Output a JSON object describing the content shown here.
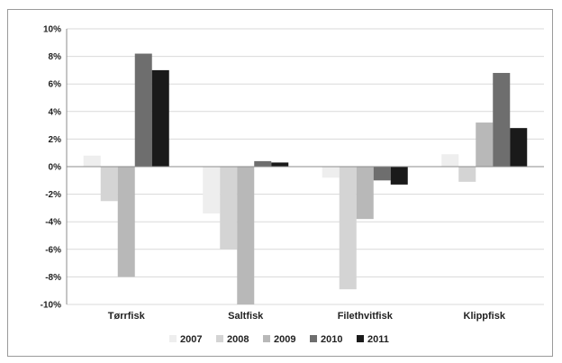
{
  "chart_data": {
    "type": "bar",
    "categories": [
      "Tørrfisk",
      "Saltfisk",
      "Filethvitfisk",
      "Klippfisk"
    ],
    "series": [
      {
        "name": "2007",
        "color": "#eeeeee",
        "values": [
          0.8,
          -3.4,
          -0.8,
          0.9
        ]
      },
      {
        "name": "2008",
        "color": "#d4d4d4",
        "values": [
          -2.5,
          -6.0,
          -8.9,
          -1.1
        ]
      },
      {
        "name": "2009",
        "color": "#b8b8b8",
        "values": [
          -8.0,
          -10.0,
          -3.8,
          3.2
        ]
      },
      {
        "name": "2010",
        "color": "#6e6e6e",
        "values": [
          8.2,
          0.4,
          -1.0,
          6.8
        ]
      },
      {
        "name": "2011",
        "color": "#1a1a1a",
        "values": [
          7.0,
          0.3,
          -1.3,
          2.8
        ]
      }
    ],
    "ylim": [
      -10,
      10
    ],
    "yticks": [
      -10,
      -8,
      -6,
      -4,
      -2,
      0,
      2,
      4,
      6,
      8,
      10
    ],
    "ytick_labels": [
      "-10%",
      "-8%",
      "-6%",
      "-4%",
      "-2%",
      "0%",
      "2%",
      "4%",
      "6%",
      "8%",
      "10%"
    ],
    "grid": true,
    "legend_position": "bottom"
  }
}
